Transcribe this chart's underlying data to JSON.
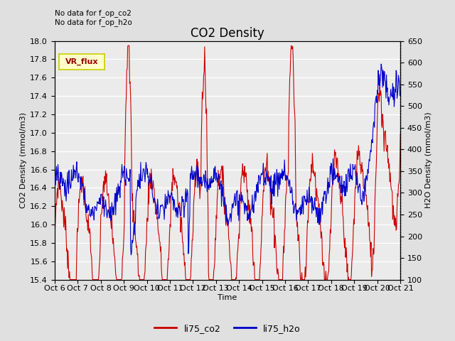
{
  "title": "CO2 Density",
  "xlabel": "Time",
  "ylabel_left": "CO2 Density (mmol/m3)",
  "ylabel_right": "H2O Density (mmol/m3)",
  "text_no_data_line1": "No data for f_op_co2",
  "text_no_data_line2": "No data for f_op_h2o",
  "vr_flux_label": "VR_flux",
  "legend_labels": [
    "li75_co2",
    "li75_h2o"
  ],
  "co2_color": "#CC0000",
  "h2o_color": "#0000CC",
  "ylim_left": [
    15.4,
    18.0
  ],
  "ylim_right": [
    100,
    650
  ],
  "yticks_left": [
    15.4,
    15.6,
    15.8,
    16.0,
    16.2,
    16.4,
    16.6,
    16.8,
    17.0,
    17.2,
    17.4,
    17.6,
    17.8,
    18.0
  ],
  "yticks_right": [
    100,
    150,
    200,
    250,
    300,
    350,
    400,
    450,
    500,
    550,
    600,
    650
  ],
  "xtick_labels": [
    "Oct 6",
    "Oct 7",
    "Oct 8",
    "Oct 9",
    "Oct 10",
    "Oct 11",
    "Oct 12",
    "Oct 13",
    "Oct 14",
    "Oct 15",
    "Oct 16",
    "Oct 17",
    "Oct 18",
    "Oct 19",
    "Oct 20",
    "Oct 21"
  ],
  "background_color": "#E0E0E0",
  "plot_bg_color": "#EBEBEB",
  "grid_color": "#FFFFFF",
  "title_fontsize": 12,
  "label_fontsize": 8,
  "tick_fontsize": 8,
  "figwidth": 6.4,
  "figheight": 4.8,
  "dpi": 100
}
